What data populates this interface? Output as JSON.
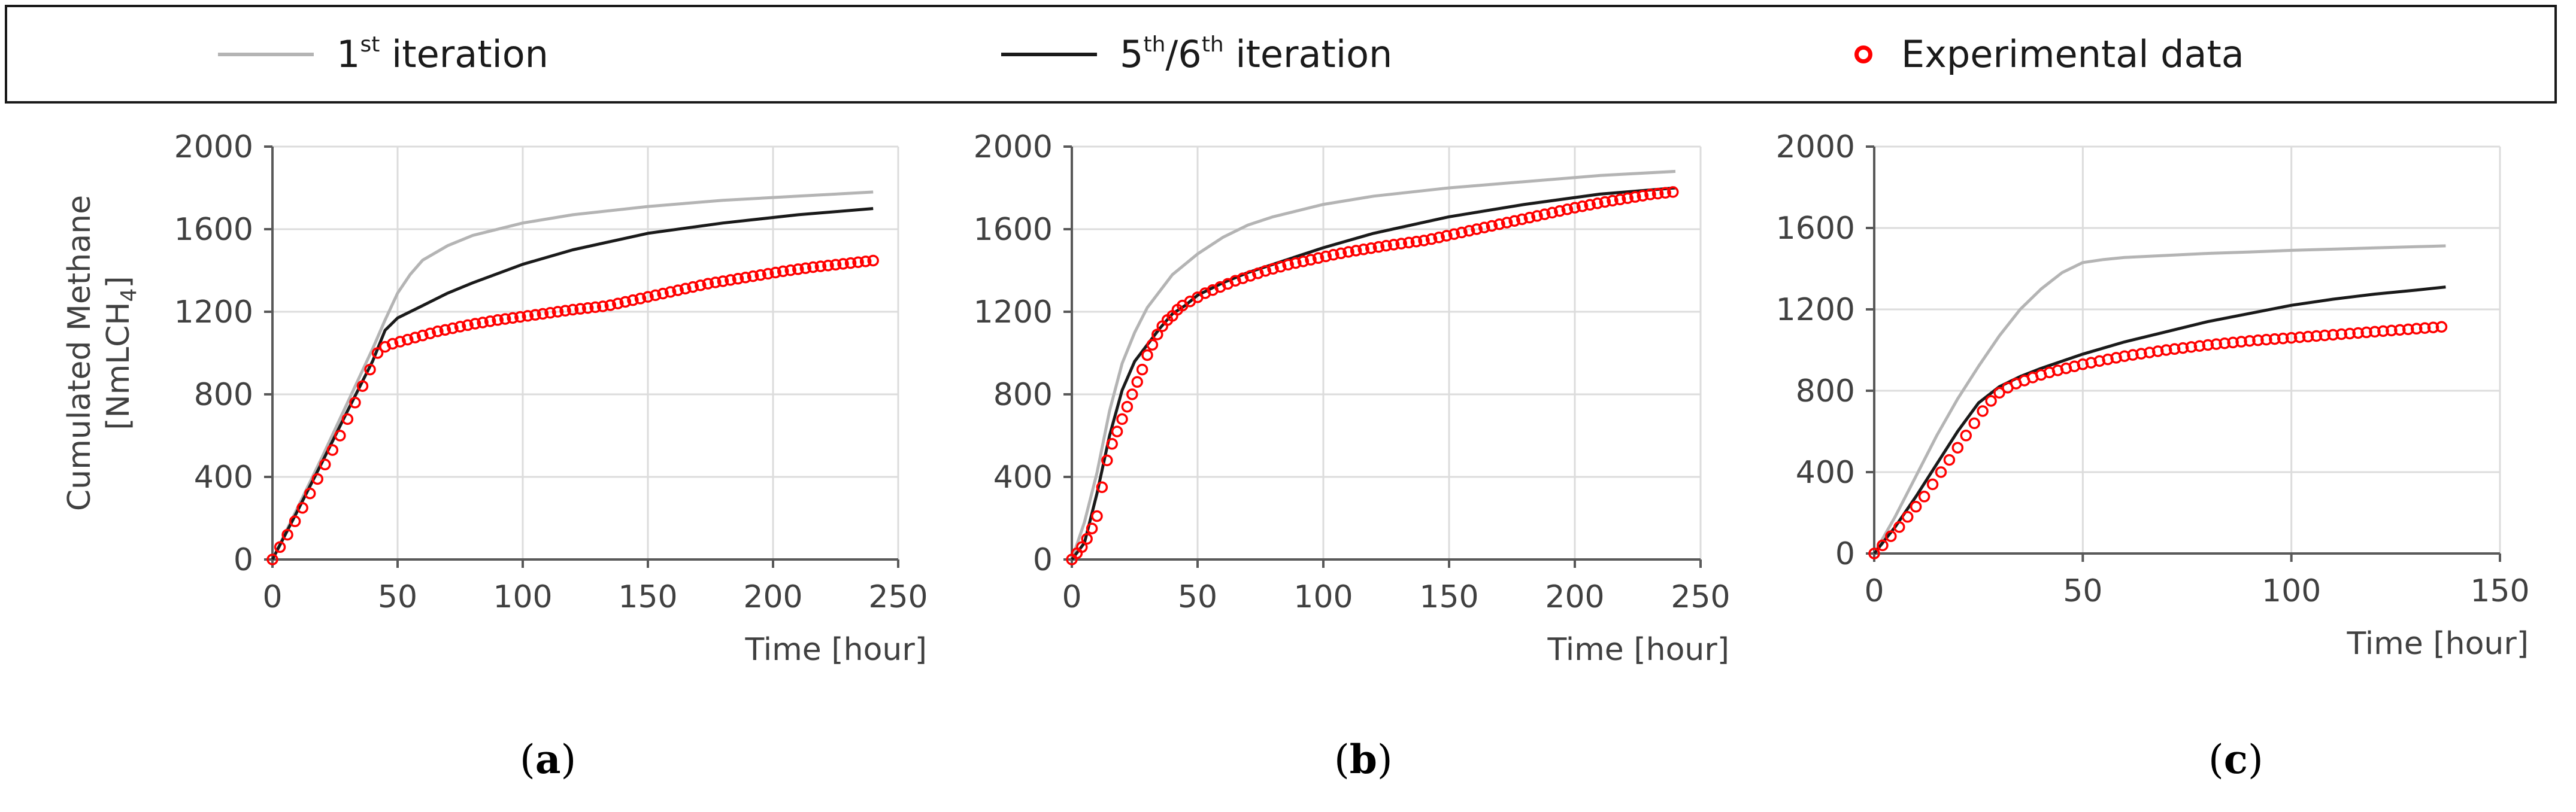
{
  "colors": {
    "iter1": "#b4b4b4",
    "iter56": "#1a1a1a",
    "exp": "#ff0000",
    "grid": "#dcdcdc",
    "axis": "#595959"
  },
  "legend": {
    "iter1": {
      "base": "1",
      "sup": "st",
      "rest": " iteration"
    },
    "iter56": {
      "base1": "5",
      "sup1": "th",
      "mid": "/6",
      "sup2": "th",
      "rest": " iteration"
    },
    "exp": {
      "label": "Experimental data"
    }
  },
  "chart_data": [
    {
      "id": "a",
      "type": "line",
      "label": "a",
      "ylabel_line1": "Cumulated Methane",
      "ylabel_line2": "[NmLCH",
      "ylabel_sub": "4",
      "ylabel_end": "]",
      "xlabel": "Time [hour]",
      "xlim": [
        0,
        250
      ],
      "ylim": [
        0,
        2000
      ],
      "xticks": [
        0,
        50,
        100,
        150,
        200,
        250
      ],
      "yticks": [
        0,
        400,
        800,
        1200,
        1600,
        2000
      ],
      "series": [
        {
          "name": "1st iteration",
          "style": "line",
          "color": "iter1",
          "x": [
            0,
            10,
            20,
            30,
            40,
            45,
            50,
            55,
            60,
            70,
            80,
            100,
            120,
            150,
            180,
            210,
            240
          ],
          "y": [
            0,
            250,
            500,
            760,
            1020,
            1160,
            1290,
            1380,
            1450,
            1520,
            1570,
            1630,
            1670,
            1710,
            1740,
            1760,
            1780
          ]
        },
        {
          "name": "5th/6th iteration",
          "style": "line",
          "color": "iter56",
          "x": [
            0,
            10,
            20,
            30,
            40,
            45,
            50,
            60,
            70,
            80,
            100,
            120,
            150,
            180,
            210,
            240
          ],
          "y": [
            0,
            235,
            475,
            720,
            960,
            1110,
            1170,
            1230,
            1290,
            1340,
            1430,
            1500,
            1580,
            1630,
            1670,
            1700
          ]
        },
        {
          "name": "Experimental data",
          "style": "marker",
          "color": "exp",
          "x": [
            0,
            3,
            6,
            9,
            12,
            15,
            18,
            21,
            24,
            27,
            30,
            33,
            36,
            39,
            42,
            45,
            48,
            51,
            54,
            57,
            60,
            63,
            66,
            69,
            72,
            75,
            78,
            81,
            84,
            87,
            90,
            93,
            96,
            99,
            102,
            105,
            108,
            111,
            114,
            117,
            120,
            123,
            126,
            129,
            132,
            135,
            138,
            141,
            144,
            147,
            150,
            153,
            156,
            159,
            162,
            165,
            168,
            171,
            174,
            177,
            180,
            183,
            186,
            189,
            192,
            195,
            198,
            201,
            204,
            207,
            210,
            213,
            216,
            219,
            222,
            225,
            228,
            231,
            234,
            237,
            240
          ],
          "y": [
            0,
            60,
            120,
            185,
            250,
            320,
            390,
            460,
            530,
            600,
            680,
            760,
            840,
            920,
            1000,
            1030,
            1045,
            1055,
            1065,
            1075,
            1085,
            1095,
            1105,
            1112,
            1120,
            1128,
            1135,
            1142,
            1148,
            1154,
            1160,
            1165,
            1170,
            1175,
            1180,
            1185,
            1190,
            1195,
            1200,
            1205,
            1210,
            1214,
            1218,
            1222,
            1226,
            1232,
            1240,
            1248,
            1256,
            1264,
            1272,
            1280,
            1288,
            1296,
            1304,
            1312,
            1320,
            1328,
            1336,
            1342,
            1348,
            1354,
            1360,
            1366,
            1372,
            1378,
            1384,
            1390,
            1396,
            1401,
            1406,
            1411,
            1416,
            1420,
            1424,
            1428,
            1432,
            1436,
            1440,
            1444,
            1448
          ]
        }
      ]
    },
    {
      "id": "b",
      "type": "line",
      "label": "b",
      "xlabel": "Time [hour]",
      "xlim": [
        0,
        250
      ],
      "ylim": [
        0,
        2000
      ],
      "xticks": [
        0,
        50,
        100,
        150,
        200,
        250
      ],
      "yticks": [
        0,
        400,
        800,
        1200,
        1600,
        2000
      ],
      "series": [
        {
          "name": "1st iteration",
          "style": "line",
          "color": "iter1",
          "x": [
            0,
            5,
            10,
            15,
            20,
            25,
            30,
            40,
            50,
            60,
            70,
            80,
            100,
            120,
            150,
            180,
            210,
            240
          ],
          "y": [
            0,
            180,
            420,
            720,
            950,
            1100,
            1220,
            1380,
            1480,
            1560,
            1620,
            1660,
            1720,
            1760,
            1800,
            1830,
            1860,
            1880
          ]
        },
        {
          "name": "5th/6th iteration",
          "style": "line",
          "color": "iter56",
          "x": [
            0,
            5,
            10,
            15,
            20,
            25,
            30,
            35,
            40,
            45,
            50,
            60,
            70,
            80,
            100,
            120,
            150,
            180,
            210,
            240
          ],
          "y": [
            0,
            80,
            320,
            600,
            820,
            960,
            1040,
            1120,
            1190,
            1230,
            1280,
            1340,
            1390,
            1430,
            1510,
            1580,
            1660,
            1720,
            1770,
            1800
          ]
        },
        {
          "name": "Experimental data",
          "style": "marker",
          "color": "exp",
          "x": [
            0,
            2,
            4,
            6,
            8,
            10,
            12,
            14,
            16,
            18,
            20,
            22,
            24,
            26,
            28,
            30,
            32,
            34,
            36,
            38,
            40,
            42,
            44,
            47,
            50,
            53,
            56,
            59,
            62,
            65,
            68,
            71,
            74,
            77,
            80,
            83,
            86,
            89,
            92,
            95,
            98,
            101,
            104,
            107,
            110,
            113,
            116,
            119,
            122,
            125,
            128,
            131,
            134,
            137,
            140,
            143,
            146,
            149,
            152,
            155,
            158,
            161,
            164,
            167,
            170,
            173,
            176,
            179,
            182,
            185,
            188,
            191,
            194,
            197,
            200,
            203,
            206,
            209,
            212,
            215,
            218,
            221,
            224,
            227,
            230,
            233,
            236,
            239
          ],
          "y": [
            0,
            30,
            60,
            100,
            150,
            210,
            350,
            480,
            560,
            620,
            680,
            740,
            800,
            860,
            920,
            990,
            1040,
            1090,
            1130,
            1160,
            1180,
            1210,
            1230,
            1250,
            1270,
            1290,
            1305,
            1320,
            1335,
            1350,
            1362,
            1374,
            1386,
            1398,
            1408,
            1418,
            1428,
            1436,
            1444,
            1452,
            1460,
            1468,
            1476,
            1483,
            1490,
            1496,
            1502,
            1508,
            1514,
            1520,
            1525,
            1530,
            1535,
            1540,
            1545,
            1552,
            1560,
            1568,
            1576,
            1584,
            1592,
            1600,
            1608,
            1616,
            1624,
            1632,
            1640,
            1648,
            1656,
            1664,
            1672,
            1680,
            1688,
            1696,
            1704,
            1711,
            1718,
            1725,
            1732,
            1738,
            1744,
            1750,
            1756,
            1762,
            1768,
            1772,
            1776,
            1780
          ]
        }
      ]
    },
    {
      "id": "c",
      "type": "line",
      "label": "c",
      "xlabel": "Time [hour]",
      "xlim": [
        0,
        150
      ],
      "ylim": [
        0,
        2000
      ],
      "xticks": [
        0,
        50,
        100,
        150
      ],
      "yticks": [
        0,
        400,
        800,
        1200,
        1600,
        2000
      ],
      "series": [
        {
          "name": "1st iteration",
          "style": "line",
          "color": "iter1",
          "x": [
            0,
            5,
            10,
            15,
            20,
            25,
            30,
            35,
            40,
            45,
            50,
            55,
            60,
            70,
            80,
            90,
            100,
            110,
            120,
            130,
            137
          ],
          "y": [
            0,
            180,
            380,
            580,
            760,
            920,
            1070,
            1200,
            1300,
            1380,
            1430,
            1445,
            1455,
            1465,
            1475,
            1482,
            1490,
            1496,
            1502,
            1508,
            1512
          ]
        },
        {
          "name": "5th/6th iteration",
          "style": "line",
          "color": "iter56",
          "x": [
            0,
            5,
            10,
            15,
            20,
            25,
            30,
            35,
            40,
            50,
            60,
            70,
            80,
            90,
            100,
            110,
            120,
            130,
            137
          ],
          "y": [
            0,
            130,
            280,
            440,
            600,
            740,
            820,
            870,
            910,
            980,
            1040,
            1090,
            1140,
            1180,
            1220,
            1250,
            1275,
            1295,
            1310
          ]
        },
        {
          "name": "Experimental data",
          "style": "marker",
          "color": "exp",
          "x": [
            0,
            2,
            4,
            6,
            8,
            10,
            12,
            14,
            16,
            18,
            20,
            22,
            24,
            26,
            28,
            30,
            32,
            34,
            36,
            38,
            40,
            42,
            44,
            46,
            48,
            50,
            52,
            54,
            56,
            58,
            60,
            62,
            64,
            66,
            68,
            70,
            72,
            74,
            76,
            78,
            80,
            82,
            84,
            86,
            88,
            90,
            92,
            94,
            96,
            98,
            100,
            102,
            104,
            106,
            108,
            110,
            112,
            114,
            116,
            118,
            120,
            122,
            124,
            126,
            128,
            130,
            132,
            134,
            136
          ],
          "y": [
            0,
            40,
            85,
            130,
            180,
            230,
            280,
            340,
            400,
            460,
            520,
            580,
            640,
            700,
            750,
            790,
            815,
            835,
            850,
            865,
            878,
            890,
            900,
            910,
            920,
            930,
            938,
            946,
            954,
            962,
            970,
            976,
            982,
            988,
            994,
            1000,
            1005,
            1010,
            1015,
            1020,
            1025,
            1029,
            1033,
            1037,
            1041,
            1045,
            1048,
            1051,
            1054,
            1057,
            1060,
            1063,
            1066,
            1069,
            1072,
            1075,
            1078,
            1081,
            1084,
            1087,
            1090,
            1093,
            1096,
            1099,
            1102,
            1105,
            1108,
            1111,
            1114
          ]
        }
      ]
    }
  ]
}
